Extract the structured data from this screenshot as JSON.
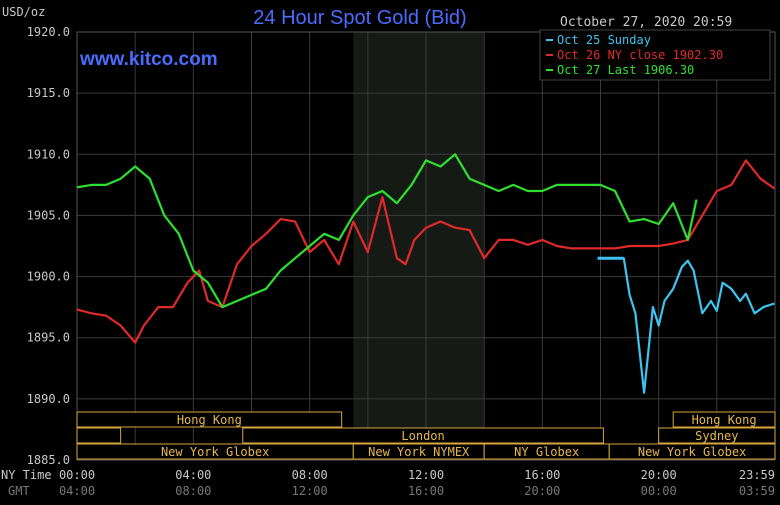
{
  "chart_data": {
    "type": "line",
    "title": "24 Hour Spot Gold (Bid)",
    "site": "www.kitco.com",
    "timestamp": "October 27, 2020 20:59",
    "ylabel": "USD/oz",
    "ylim": [
      1885,
      1920
    ],
    "yticks": [
      "1920.0",
      "1915.0",
      "1910.0",
      "1905.0",
      "1900.0",
      "1895.0",
      "1890.0",
      "1885.0"
    ],
    "xlim": [
      0,
      24
    ],
    "ny_label": "NY Time",
    "gmt_label": "GMT",
    "xticks_ny": [
      "00:00",
      "04:00",
      "08:00",
      "12:00",
      "16:00",
      "20:00",
      "23:59"
    ],
    "xticks_gmt": [
      "04:00",
      "08:00",
      "12:00",
      "16:00",
      "20:00",
      "00:00",
      "03:59"
    ],
    "legend": [
      {
        "label": "Oct 25 Sunday",
        "color": "#3ec3f0"
      },
      {
        "label": "Oct 26 NY close 1902.30",
        "color": "#e02a2a"
      },
      {
        "label": "Oct 27 Last 1906.30",
        "color": "#2ee02e"
      }
    ],
    "shaded_range": [
      9.5,
      14
    ],
    "sessions": [
      {
        "label": "Hong Kong",
        "row": 0,
        "start": 0,
        "end": 9.1
      },
      {
        "label": "Hong Kong",
        "row": 0,
        "start": 20.5,
        "end": 24
      },
      {
        "label": "",
        "row": 1,
        "start": 0,
        "end": 1.5
      },
      {
        "label": "London",
        "row": 1,
        "start": 5.7,
        "end": 18.1
      },
      {
        "label": "Sydney",
        "row": 1,
        "start": 20,
        "end": 24
      },
      {
        "label": "New York Globex",
        "row": 2,
        "start": 0,
        "end": 9.5
      },
      {
        "label": "New York NYMEX",
        "row": 2,
        "start": 9.5,
        "end": 14
      },
      {
        "label": "NY Globex",
        "row": 2,
        "start": 14,
        "end": 18.3
      },
      {
        "label": "New York Globex",
        "row": 2,
        "start": 18.3,
        "end": 24
      }
    ],
    "series": [
      {
        "name": "Oct 25 Sunday",
        "color": "#3ec3f0",
        "x": [
          18.0,
          18.8,
          19.0,
          19.2,
          19.5,
          19.8,
          20.0,
          20.2,
          20.5,
          20.8,
          21.0,
          21.2,
          21.5,
          21.8,
          22.0,
          22.2,
          22.5,
          22.8,
          23.0,
          23.3,
          23.6,
          23.98
        ],
        "y": [
          1901.5,
          1901.5,
          1898.5,
          1897.0,
          1890.5,
          1897.5,
          1896.0,
          1898.0,
          1899.0,
          1900.8,
          1901.3,
          1900.5,
          1897.0,
          1898.0,
          1897.2,
          1899.5,
          1899.0,
          1898.0,
          1898.6,
          1897.0,
          1897.5,
          1897.8
        ]
      },
      {
        "name": "Oct 26 NY close 1902.30",
        "color": "#e02a2a",
        "x": [
          0,
          0.5,
          1.0,
          1.5,
          2.0,
          2.3,
          2.8,
          3.3,
          3.8,
          4.2,
          4.5,
          5.0,
          5.5,
          6.0,
          6.5,
          7.0,
          7.5,
          8.0,
          8.5,
          9.0,
          9.5,
          10.0,
          10.5,
          11.0,
          11.3,
          11.6,
          12.0,
          12.5,
          13.0,
          13.5,
          14.0,
          14.5,
          15.0,
          15.5,
          16.0,
          16.5,
          17.0,
          17.5,
          18.0,
          18.5,
          19.0,
          19.5,
          20.0,
          20.5,
          21.0,
          21.5,
          22.0,
          22.5,
          23.0,
          23.5,
          23.98
        ],
        "y": [
          1897.3,
          1897.0,
          1896.8,
          1896.0,
          1894.6,
          1896.0,
          1897.5,
          1897.5,
          1899.5,
          1900.5,
          1898.0,
          1897.5,
          1901.0,
          1902.5,
          1903.5,
          1904.7,
          1904.5,
          1902.0,
          1903.0,
          1901.0,
          1904.5,
          1902.0,
          1906.5,
          1901.5,
          1901.0,
          1903.0,
          1904.0,
          1904.5,
          1904.0,
          1903.8,
          1901.5,
          1903.0,
          1903.0,
          1902.6,
          1903.0,
          1902.5,
          1902.3,
          1902.3,
          1902.3,
          1902.3,
          1902.5,
          1902.5,
          1902.5,
          1902.7,
          1903.0,
          1905.0,
          1907.0,
          1907.5,
          1909.5,
          1908.0,
          1907.2
        ]
      },
      {
        "name": "Oct 27 Last 1906.30",
        "color": "#2ee02e",
        "x": [
          0,
          0.5,
          1.0,
          1.5,
          2.0,
          2.5,
          3.0,
          3.5,
          4.0,
          4.5,
          5.0,
          5.5,
          6.0,
          6.5,
          7.0,
          7.5,
          8.0,
          8.5,
          9.0,
          9.5,
          10.0,
          10.5,
          11.0,
          11.5,
          12.0,
          12.5,
          13.0,
          13.5,
          14.0,
          14.5,
          15.0,
          15.5,
          16.0,
          16.5,
          17.0,
          17.5,
          18.0,
          18.5,
          19.0,
          19.5,
          20.0,
          20.5,
          21.0,
          21.3
        ],
        "y": [
          1907.3,
          1907.5,
          1907.5,
          1908.0,
          1909.0,
          1908.0,
          1905.0,
          1903.5,
          1900.5,
          1899.5,
          1897.5,
          1898.0,
          1898.5,
          1899.0,
          1900.5,
          1901.5,
          1902.5,
          1903.5,
          1903.0,
          1905.0,
          1906.5,
          1907.0,
          1906.0,
          1907.5,
          1909.5,
          1909.0,
          1910.0,
          1908.0,
          1907.5,
          1907.0,
          1907.5,
          1907.0,
          1907.0,
          1907.5,
          1907.5,
          1907.5,
          1907.5,
          1907.0,
          1904.5,
          1904.7,
          1904.3,
          1906.0,
          1903.0,
          1906.3
        ]
      }
    ]
  }
}
